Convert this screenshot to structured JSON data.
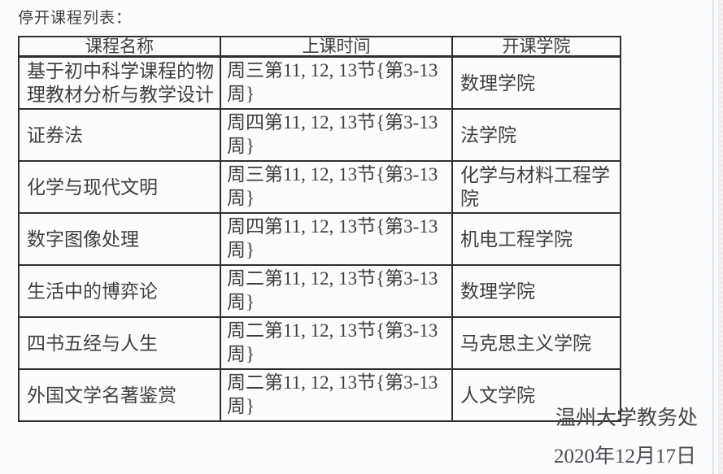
{
  "page": {
    "title": "停开课程列表："
  },
  "table": {
    "headers": [
      "课程名称",
      "上课时间",
      "开课学院"
    ],
    "rows": [
      {
        "course": "基于初中科学课程的物理教材分析与教学设计",
        "time": "周三第11, 12, 13节{第3-13周}",
        "college": "数理学院"
      },
      {
        "course": "证券法",
        "time": "周四第11, 12, 13节{第3-13周}",
        "college": "法学院"
      },
      {
        "course": "化学与现代文明",
        "time": "周三第11, 12, 13节{第3-13周}",
        "college": "化学与材料工程学院"
      },
      {
        "course": "数字图像处理",
        "time": "周四第11, 12, 13节{第3-13周}",
        "college": "机电工程学院"
      },
      {
        "course": "生活中的博弈论",
        "time": "周二第11, 12, 13节{第3-13周}",
        "college": "数理学院"
      },
      {
        "course": "四书五经与人生",
        "time": "周二第11, 12, 13节{第3-13周}",
        "college": "马克思主义学院"
      },
      {
        "course": "外国文学名著鉴赏",
        "time": "周二第11, 12, 13节{第3-13周}",
        "college": "人文学院"
      }
    ]
  },
  "footer": {
    "signature": "温州大学教务处",
    "date": "2020年12月17日"
  },
  "colors": {
    "ink": "#3f3f3f",
    "border": "#2f2f2f",
    "paper": "#fcfcfc",
    "edge-blue": "#c7dbe9",
    "edge-strip": "#efe8ec"
  }
}
